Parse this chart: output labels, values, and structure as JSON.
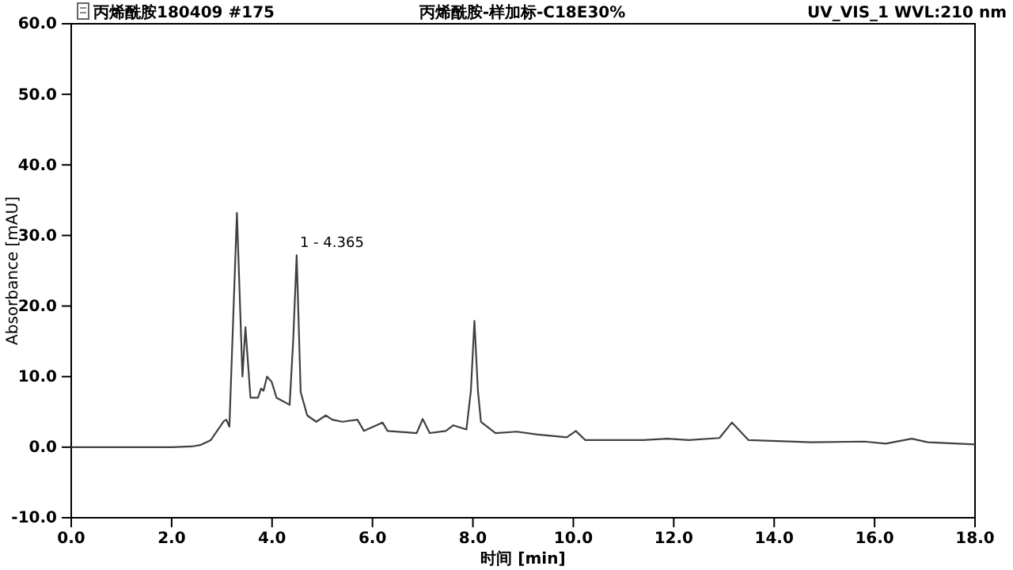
{
  "chart_data": {
    "type": "line",
    "title": "丙烯酰胺180409 #175",
    "subtitle": "丙烯酰胺-样加标-C18E30%",
    "xlabel": "时间 [min]",
    "ylabel": "Absorbance [mAU]",
    "annotations": [
      "UV_VIS_1 WVL:210 nm",
      {
        "text": "1 - 4.365",
        "x": 4.365,
        "y": 27.5
      }
    ],
    "xlim": [
      0,
      18
    ],
    "ylim": [
      -10,
      60
    ],
    "xticks": [
      {
        "value": 0,
        "label": "0.0"
      },
      {
        "value": 2,
        "label": "2.0"
      },
      {
        "value": 4,
        "label": "4.0"
      },
      {
        "value": 6,
        "label": "6.0"
      },
      {
        "value": 8,
        "label": "8.0"
      },
      {
        "value": 10,
        "label": "10.0"
      },
      {
        "value": 12,
        "label": "12.0"
      },
      {
        "value": 14,
        "label": "14.0"
      },
      {
        "value": 16,
        "label": "16.0"
      },
      {
        "value": 18,
        "label": "18.0"
      }
    ],
    "yticks": [
      {
        "value": -10,
        "label": "-10.0"
      },
      {
        "value": 0,
        "label": "0.0"
      },
      {
        "value": 10,
        "label": "10.0"
      },
      {
        "value": 20,
        "label": "20.0"
      },
      {
        "value": 30,
        "label": "30.0"
      },
      {
        "value": 40,
        "label": "40.0"
      },
      {
        "value": 50,
        "label": "50.0"
      },
      {
        "value": 60,
        "label": "60.0"
      }
    ],
    "grid": false,
    "marker": "none",
    "line_style": "solid",
    "series": [
      {
        "color": "#404040",
        "x": [
          0,
          1.0,
          2.0,
          2.4,
          2.57,
          2.78,
          3.04,
          3.09,
          3.15,
          3.3,
          3.41,
          3.47,
          3.57,
          3.72,
          3.78,
          3.83,
          3.9,
          3.99,
          4.09,
          4.35,
          4.42,
          4.49,
          4.57,
          4.7,
          4.88,
          5.07,
          5.2,
          5.4,
          5.7,
          5.83,
          6.2,
          6.3,
          6.88,
          7.0,
          7.14,
          7.46,
          7.61,
          7.87,
          7.96,
          8.03,
          8.1,
          8.16,
          8.45,
          8.87,
          9.29,
          9.87,
          10.05,
          10.24,
          11.39,
          11.87,
          12.3,
          12.91,
          13.16,
          13.49,
          14.75,
          15.8,
          16.22,
          16.74,
          17.06,
          18.0
        ],
        "values": [
          0,
          0,
          0,
          0.1,
          0.3,
          1.0,
          3.7,
          3.9,
          2.9,
          33.2,
          10.0,
          17.0,
          7.0,
          7.0,
          8.3,
          8.0,
          10.0,
          9.3,
          7.0,
          6.0,
          15,
          27.2,
          7.8,
          4.5,
          3.6,
          4.5,
          3.9,
          3.6,
          3.9,
          2.3,
          3.5,
          2.3,
          2.0,
          4.0,
          2.0,
          2.3,
          3.1,
          2.5,
          8,
          17.9,
          8,
          3.6,
          2.0,
          2.2,
          1.8,
          1.4,
          2.3,
          1.0,
          1.0,
          1.2,
          1.0,
          1.3,
          3.5,
          1.0,
          0.7,
          0.8,
          0.5,
          1.2,
          0.7,
          0.4
        ]
      }
    ]
  }
}
